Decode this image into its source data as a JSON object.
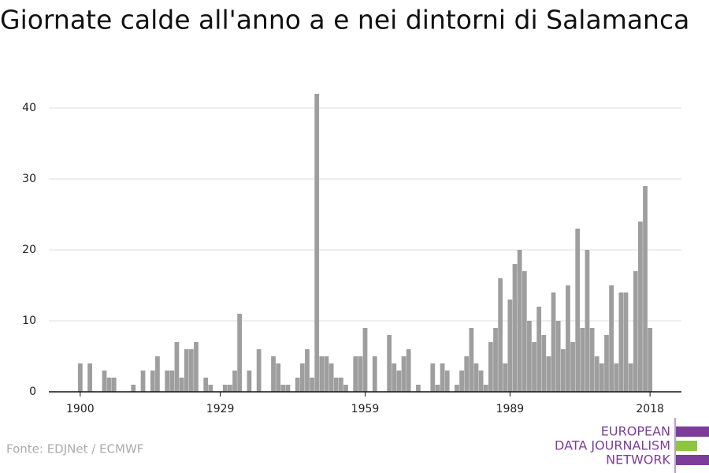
{
  "chart_data": {
    "type": "bar",
    "title": "Giornate calde all'anno a e nei dintorni di Salamanca",
    "x": [
      1900,
      1902,
      1905,
      1906,
      1907,
      1911,
      1913,
      1915,
      1916,
      1918,
      1919,
      1920,
      1921,
      1922,
      1923,
      1924,
      1926,
      1927,
      1930,
      1931,
      1932,
      1933,
      1935,
      1937,
      1940,
      1941,
      1942,
      1943,
      1945,
      1946,
      1947,
      1948,
      1949,
      1950,
      1951,
      1952,
      1953,
      1954,
      1955,
      1957,
      1958,
      1959,
      1961,
      1964,
      1965,
      1966,
      1967,
      1968,
      1970,
      1973,
      1974,
      1975,
      1976,
      1978,
      1979,
      1980,
      1981,
      1982,
      1983,
      1984,
      1985,
      1986,
      1987,
      1988,
      1989,
      1990,
      1991,
      1992,
      1993,
      1994,
      1995,
      1996,
      1997,
      1998,
      1999,
      2000,
      2001,
      2002,
      2003,
      2004,
      2005,
      2006,
      2007,
      2008,
      2009,
      2010,
      2011,
      2012,
      2013,
      2014,
      2015,
      2016,
      2017,
      2018
    ],
    "values": [
      4,
      4,
      3,
      2,
      2,
      1,
      3,
      3,
      5,
      3,
      3,
      7,
      2,
      6,
      6,
      7,
      2,
      1,
      1,
      1,
      3,
      11,
      3,
      6,
      5,
      4,
      1,
      1,
      2,
      4,
      6,
      2,
      42,
      5,
      5,
      4,
      2,
      2,
      1,
      5,
      5,
      9,
      5,
      8,
      4,
      3,
      5,
      6,
      1,
      4,
      1,
      4,
      3,
      1,
      3,
      5,
      9,
      4,
      3,
      1,
      7,
      9,
      16,
      4,
      13,
      18,
      20,
      17,
      10,
      7,
      12,
      8,
      5,
      14,
      10,
      6,
      15,
      7,
      23,
      9,
      20,
      9,
      5,
      4,
      8,
      15,
      4,
      14,
      14,
      4,
      17,
      24,
      29,
      9
    ],
    "color": "#9e9e9e",
    "xlim": [
      1893.5,
      2024.5
    ],
    "xticks": [
      1900,
      1929,
      1959,
      1989,
      2018
    ],
    "ylim": [
      0,
      43
    ],
    "yticks": [
      0,
      10,
      20,
      30,
      40
    ],
    "grid": true,
    "source": "Fonte: EDJNet / ECMWF",
    "logo": [
      "EUROPEAN",
      "DATA JOURNALISM",
      "NETWORK"
    ]
  }
}
